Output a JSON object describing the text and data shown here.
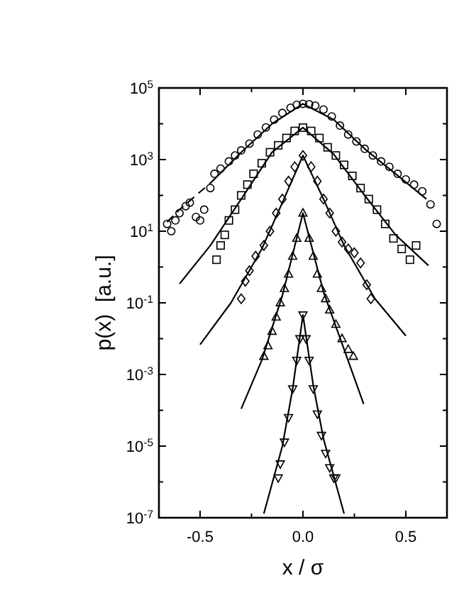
{
  "chart_data": {
    "type": "scatter",
    "xlabel": "x / σ",
    "ylabel": "p(x)  [a.u.]",
    "log": "y",
    "grid": false,
    "xlim": [
      -0.7,
      0.7
    ],
    "ylim": [
      1e-07,
      100000.0
    ],
    "xticks": [
      {
        "value": -0.5,
        "label": "-0.5"
      },
      {
        "value": -0.25,
        "label": null
      },
      {
        "value": 0,
        "label": "0.0"
      },
      {
        "value": 0.25,
        "label": null
      },
      {
        "value": 0.5,
        "label": "0.5"
      }
    ],
    "yticks": [
      {
        "value": 1e-07,
        "label": "10$^{-7}$"
      },
      {
        "value": 1e-06,
        "label": null
      },
      {
        "value": 1e-05,
        "label": "10$^{-5}$"
      },
      {
        "value": 0.0001,
        "label": null
      },
      {
        "value": 0.001,
        "label": "10$^{-3}$"
      },
      {
        "value": 0.01,
        "label": null
      },
      {
        "value": 0.1,
        "label": "10$^{-1}$"
      },
      {
        "value": 1,
        "label": null
      },
      {
        "value": 10,
        "label": "10$^{1}$"
      },
      {
        "value": 100,
        "label": null
      },
      {
        "value": 1000,
        "label": "10$^{3}$"
      },
      {
        "value": 10000,
        "label": null
      },
      {
        "value": 100000,
        "label": "10$^{5}$"
      }
    ],
    "series": [
      {
        "marker": "circle",
        "color": "#000000",
        "x": [
          -0.66,
          -0.64,
          -0.62,
          -0.6,
          -0.57,
          -0.55,
          -0.52,
          -0.5,
          -0.48,
          -0.45,
          -0.43,
          -0.4,
          -0.36,
          -0.33,
          -0.3,
          -0.26,
          -0.22,
          -0.18,
          -0.14,
          -0.1,
          -0.06,
          -0.03,
          0,
          0.03,
          0.06,
          0.1,
          0.14,
          0.18,
          0.22,
          0.26,
          0.3,
          0.34,
          0.38,
          0.42,
          0.46,
          0.5,
          0.54,
          0.58,
          0.62,
          0.65
        ],
        "values": [
          16,
          10,
          20,
          32,
          50,
          63,
          25,
          20,
          40,
          160,
          400,
          560,
          890,
          1300,
          1800,
          2800,
          5000,
          7900,
          13000,
          20000,
          28000,
          34000,
          36000,
          35000,
          32000,
          25000,
          16000,
          8900,
          5000,
          3200,
          2000,
          1300,
          890,
          630,
          400,
          280,
          200,
          130,
          56,
          16
        ]
      },
      {
        "type": "line",
        "marker": "none",
        "line_style": "dashed",
        "color": "#000000",
        "x": [
          -0.66,
          -0.6,
          -0.52,
          -0.45
        ],
        "values": [
          18,
          40,
          100,
          220
        ]
      },
      {
        "type": "line",
        "marker": "none",
        "line_style": "solid",
        "color": "#000000",
        "x": [
          -0.45,
          -0.3,
          -0.15,
          0,
          0.15,
          0.3,
          0.45,
          0.6
        ],
        "values": [
          220,
          1600,
          10000,
          36000,
          13000,
          2000,
          400,
          79
        ]
      },
      {
        "marker": "square",
        "color": "#000000",
        "x": [
          -0.42,
          -0.4,
          -0.38,
          -0.36,
          -0.33,
          -0.3,
          -0.27,
          -0.24,
          -0.2,
          -0.16,
          -0.12,
          -0.08,
          -0.04,
          0,
          0.04,
          0.08,
          0.12,
          0.16,
          0.2,
          0.24,
          0.28,
          0.32,
          0.36,
          0.4,
          0.44,
          0.48,
          0.52,
          0.55
        ],
        "values": [
          1.6,
          4.0,
          7.9,
          20,
          40,
          100,
          200,
          400,
          790,
          1600,
          2500,
          4000,
          6300,
          7800,
          6300,
          4000,
          2200,
          1300,
          710,
          350,
          160,
          79,
          40,
          16,
          6.3,
          3.2,
          1.6,
          4.0
        ]
      },
      {
        "type": "line",
        "marker": "none",
        "line_style": "solid",
        "color": "#000000",
        "x": [
          -0.6,
          -0.45,
          -0.3,
          -0.15,
          0,
          0.15,
          0.3,
          0.45,
          0.61
        ],
        "values": [
          0.34,
          4.0,
          79,
          1600,
          7800,
          1400,
          100,
          7.9,
          1.1
        ]
      },
      {
        "marker": "diamond",
        "color": "#000000",
        "x": [
          -0.3,
          -0.28,
          -0.26,
          -0.23,
          -0.19,
          -0.16,
          -0.13,
          -0.1,
          -0.07,
          -0.04,
          0,
          0.04,
          0.07,
          0.1,
          0.13,
          0.16,
          0.19,
          0.22,
          0.25,
          0.28,
          0.31,
          0.33
        ],
        "values": [
          0.13,
          0.4,
          0.79,
          2.0,
          4.0,
          10,
          32,
          79,
          250,
          630,
          1300,
          630,
          250,
          79,
          32,
          10,
          5.0,
          3.2,
          2.5,
          1.3,
          0.32,
          0.13
        ]
      },
      {
        "type": "line",
        "marker": "none",
        "line_style": "solid",
        "color": "#000000",
        "x": [
          -0.5,
          -0.35,
          -0.2,
          -0.1,
          0,
          0.1,
          0.2,
          0.35,
          0.5
        ],
        "values": [
          0.0068,
          0.1,
          3.2,
          63,
          1300,
          79,
          4.0,
          0.13,
          0.012
        ]
      },
      {
        "marker": "triangle",
        "color": "#000000",
        "x": [
          -0.19,
          -0.17,
          -0.15,
          -0.13,
          -0.11,
          -0.09,
          -0.07,
          -0.05,
          -0.03,
          0,
          0.03,
          0.05,
          0.07,
          0.09,
          0.11,
          0.13,
          0.16,
          0.19,
          0.22,
          0.245
        ],
        "values": [
          0.0032,
          0.0063,
          0.016,
          0.04,
          0.1,
          0.25,
          0.63,
          2.0,
          6.3,
          32,
          6.3,
          2.0,
          0.63,
          0.25,
          0.13,
          0.063,
          0.025,
          0.01,
          0.005,
          0.0032
        ]
      },
      {
        "type": "line",
        "marker": "none",
        "line_style": "solid",
        "color": "#000000",
        "x": [
          -0.3,
          -0.2,
          -0.1,
          0,
          0.1,
          0.2,
          0.295
        ],
        "values": [
          0.00011,
          0.0025,
          0.16,
          32,
          0.2,
          0.005,
          0.00015
        ]
      },
      {
        "marker": "triangle-down",
        "color": "#000000",
        "x": [
          -0.12,
          -0.11,
          -0.09,
          -0.07,
          -0.05,
          -0.03,
          -0.015,
          0,
          0.015,
          0.03,
          0.05,
          0.07,
          0.09,
          0.11,
          0.13,
          0.15,
          0.16
        ],
        "values": [
          1.3e-06,
          3.2e-06,
          1.3e-05,
          6.3e-05,
          0.0004,
          0.0025,
          0.01,
          0.046,
          0.01,
          0.0025,
          0.0004,
          7.9e-05,
          2e-05,
          6.3e-06,
          2.5e-06,
          1.3e-06,
          1.3e-06
        ]
      },
      {
        "type": "line",
        "marker": "none",
        "line_style": "solid",
        "color": "#000000",
        "x": [
          -0.19,
          -0.1,
          -0.05,
          0,
          0.05,
          0.1,
          0.2
        ],
        "values": [
          1.3e-07,
          1e-05,
          0.0004,
          0.046,
          0.0005,
          1.6e-05,
          1.3e-07
        ]
      }
    ]
  }
}
